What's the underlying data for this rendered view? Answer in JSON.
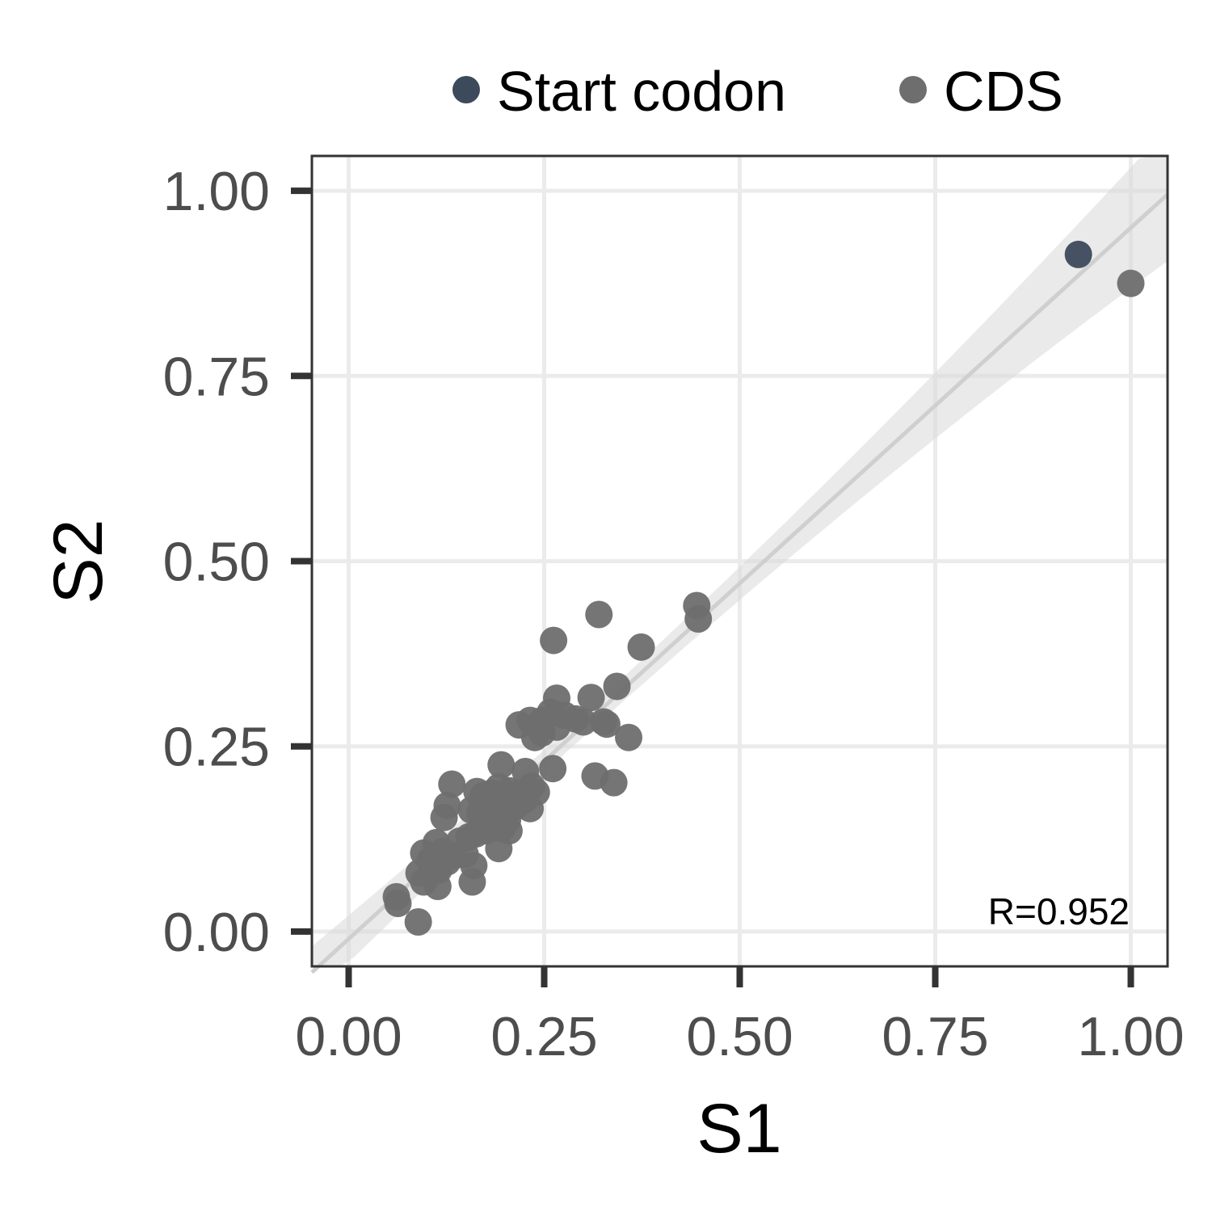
{
  "chart_data": {
    "type": "scatter",
    "xlabel": "S1",
    "ylabel": "S2",
    "xlim": [
      -0.047,
      1.047
    ],
    "ylim": [
      -0.047,
      1.047
    ],
    "x_ticks": [
      "0.00",
      "0.25",
      "0.50",
      "0.75",
      "1.00"
    ],
    "y_ticks": [
      "0.00",
      "0.25",
      "0.50",
      "0.75",
      "1.00"
    ],
    "x_tick_values": [
      0,
      0.25,
      0.5,
      0.75,
      1.0
    ],
    "y_tick_values": [
      0,
      0.25,
      0.5,
      0.75,
      1.0
    ],
    "grid": true,
    "legend_position": "top",
    "annotation": "R=0.952",
    "trend_line": {
      "intercept": -0.01,
      "slope": 0.96,
      "ci_start_halfwidth": 0.035,
      "ci_mid_halfwidth": 0.015,
      "ci_end_halfwidth": 0.09
    },
    "series": [
      {
        "name": "Start codon",
        "color": "#3d4a5c",
        "points": [
          [
            0.933,
            0.914
          ]
        ]
      },
      {
        "name": "CDS",
        "color": "#6e6e6e",
        "points": [
          [
            1.0,
            0.875
          ],
          [
            0.445,
            0.44
          ],
          [
            0.447,
            0.422
          ],
          [
            0.32,
            0.428
          ],
          [
            0.262,
            0.393
          ],
          [
            0.374,
            0.384
          ],
          [
            0.343,
            0.331
          ],
          [
            0.266,
            0.315
          ],
          [
            0.31,
            0.316
          ],
          [
            0.258,
            0.296
          ],
          [
            0.276,
            0.292
          ],
          [
            0.29,
            0.287
          ],
          [
            0.3,
            0.283
          ],
          [
            0.326,
            0.283
          ],
          [
            0.33,
            0.28
          ],
          [
            0.248,
            0.285
          ],
          [
            0.232,
            0.285
          ],
          [
            0.218,
            0.279
          ],
          [
            0.266,
            0.276
          ],
          [
            0.238,
            0.262
          ],
          [
            0.247,
            0.268
          ],
          [
            0.358,
            0.262
          ],
          [
            0.195,
            0.225
          ],
          [
            0.226,
            0.216
          ],
          [
            0.261,
            0.22
          ],
          [
            0.315,
            0.21
          ],
          [
            0.339,
            0.201
          ],
          [
            0.132,
            0.199
          ],
          [
            0.164,
            0.189
          ],
          [
            0.172,
            0.183
          ],
          [
            0.183,
            0.187
          ],
          [
            0.192,
            0.195
          ],
          [
            0.205,
            0.19
          ],
          [
            0.214,
            0.185
          ],
          [
            0.234,
            0.196
          ],
          [
            0.24,
            0.188
          ],
          [
            0.224,
            0.177
          ],
          [
            0.126,
            0.17
          ],
          [
            0.175,
            0.17
          ],
          [
            0.188,
            0.172
          ],
          [
            0.2,
            0.173
          ],
          [
            0.212,
            0.168
          ],
          [
            0.232,
            0.166
          ],
          [
            0.157,
            0.164
          ],
          [
            0.122,
            0.154
          ],
          [
            0.168,
            0.16
          ],
          [
            0.18,
            0.155
          ],
          [
            0.195,
            0.158
          ],
          [
            0.203,
            0.15
          ],
          [
            0.186,
            0.145
          ],
          [
            0.196,
            0.139
          ],
          [
            0.205,
            0.136
          ],
          [
            0.176,
            0.136
          ],
          [
            0.163,
            0.132
          ],
          [
            0.154,
            0.128
          ],
          [
            0.142,
            0.122
          ],
          [
            0.112,
            0.12
          ],
          [
            0.096,
            0.106
          ],
          [
            0.12,
            0.108
          ],
          [
            0.134,
            0.102
          ],
          [
            0.149,
            0.104
          ],
          [
            0.192,
            0.112
          ],
          [
            0.104,
            0.096
          ],
          [
            0.126,
            0.094
          ],
          [
            0.16,
            0.089
          ],
          [
            0.09,
            0.079
          ],
          [
            0.115,
            0.083
          ],
          [
            0.096,
            0.067
          ],
          [
            0.158,
            0.067
          ],
          [
            0.114,
            0.061
          ],
          [
            0.061,
            0.047
          ],
          [
            0.063,
            0.038
          ],
          [
            0.089,
            0.013
          ]
        ]
      }
    ]
  }
}
